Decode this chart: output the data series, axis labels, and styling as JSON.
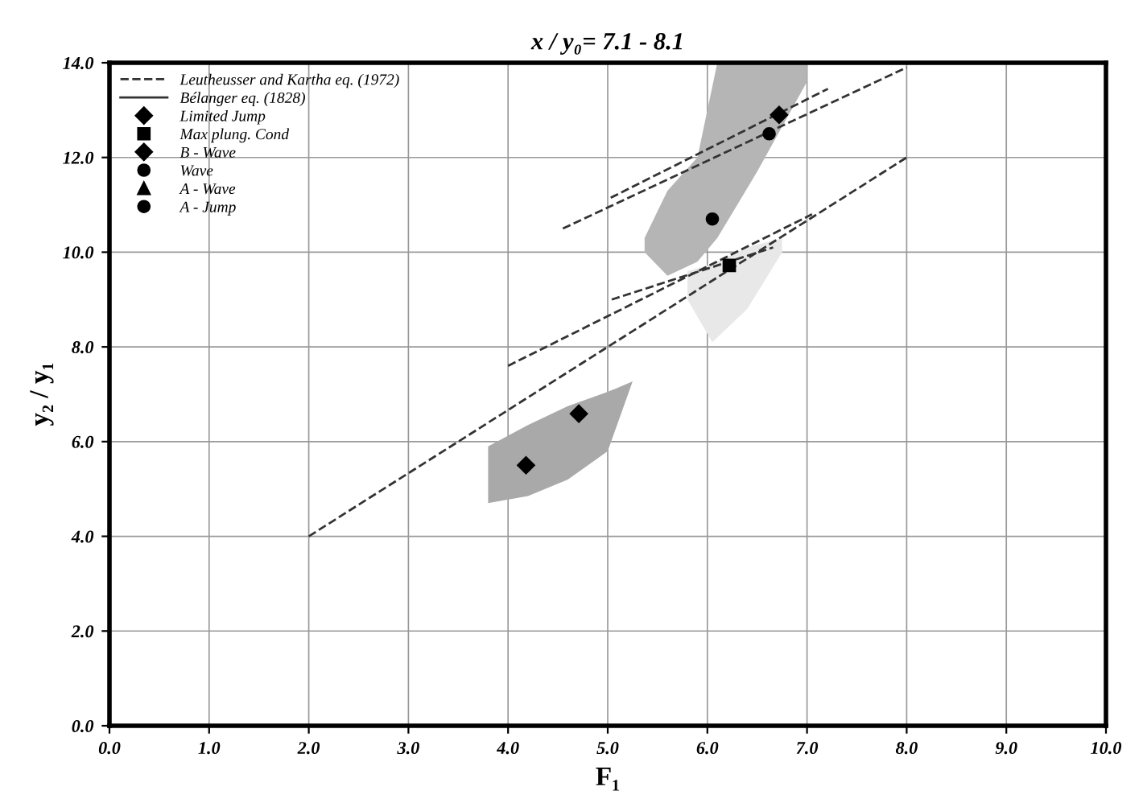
{
  "chart_data": {
    "type": "scatter",
    "title": "x / y₀= 7.1 - 8.1",
    "xlabel": "F₁",
    "ylabel": "y₂ / y₁",
    "xlim": [
      0.0,
      10.0
    ],
    "ylim": [
      0.0,
      14.0
    ],
    "xticks": [
      {
        "value": 0,
        "label": "0.0"
      },
      {
        "value": 1,
        "label": "1.0"
      },
      {
        "value": 2,
        "label": "2.0"
      },
      {
        "value": 3,
        "label": "3.0"
      },
      {
        "value": 4,
        "label": "4.0"
      },
      {
        "value": 5,
        "label": "5.0"
      },
      {
        "value": 6,
        "label": "6.0"
      },
      {
        "value": 7,
        "label": "7.0"
      },
      {
        "value": 8,
        "label": "8.0"
      },
      {
        "value": 9,
        "label": "9.0"
      },
      {
        "value": 10,
        "label": "10.0"
      }
    ],
    "yticks": [
      {
        "value": 0,
        "label": "0.0"
      },
      {
        "value": 2,
        "label": "2.0"
      },
      {
        "value": 4,
        "label": "4.0"
      },
      {
        "value": 6,
        "label": "6.0"
      },
      {
        "value": 8,
        "label": "8.0"
      },
      {
        "value": 10,
        "label": "10.0"
      },
      {
        "value": 12,
        "label": "12.0"
      },
      {
        "value": 14,
        "label": "14.0"
      }
    ],
    "grid": true,
    "legend": "top left",
    "series": [
      {
        "type": "line",
        "color": "#a9a9a9",
        "x": [
          3.8,
          4.2,
          4.6,
          5.0,
          5.25
        ],
        "values": [
          null,
          null,
          null,
          null,
          null
        ],
        "upper": [
          5.9,
          6.35,
          6.75,
          7.05,
          7.27
        ],
        "lower": [
          4.7,
          4.85,
          5.2,
          5.8,
          7.27
        ]
      },
      {
        "type": "line",
        "color": "#e8e8e8",
        "x": [
          5.8,
          6.05,
          6.4,
          6.75
        ],
        "values": [
          null,
          null,
          null,
          null
        ],
        "upper": [
          9.6,
          9.75,
          10.1,
          10.3
        ],
        "lower": [
          9.0,
          8.1,
          8.8,
          10.0
        ]
      },
      {
        "type": "line",
        "color": "#b5b5b5",
        "x": [
          5.37,
          5.6,
          5.9,
          6.1,
          6.5,
          7.0
        ],
        "values": [
          null,
          null,
          null,
          null,
          null,
          null
        ],
        "upper": [
          10.3,
          11.3,
          12.0,
          14.0,
          14.0,
          14.0
        ],
        "lower": [
          10.0,
          9.5,
          9.8,
          10.3,
          11.7,
          13.6
        ]
      },
      {
        "type": "line",
        "color": "#333333",
        "line_style": "dashed",
        "x": [
          2.0,
          8.0
        ],
        "values": [
          4.0,
          12.0
        ]
      },
      {
        "type": "line",
        "color": "#333333",
        "line_style": "dashed",
        "x": [
          4.0,
          7.05
        ],
        "values": [
          7.6,
          10.8
        ]
      },
      {
        "type": "line",
        "color": "#333333",
        "line_style": "dashed",
        "x": [
          5.04,
          6.66
        ],
        "values": [
          9.0,
          10.1
        ]
      },
      {
        "type": "line",
        "color": "#333333",
        "line_style": "dashed",
        "x": [
          5.03,
          7.21
        ],
        "values": [
          11.15,
          13.45
        ]
      },
      {
        "type": "line",
        "name": "Leutheusser and Kartha eq. (1972)",
        "color": "#333333",
        "line_style": "dashed",
        "x": [
          4.55,
          8.0
        ],
        "values": [
          10.5,
          13.9
        ]
      },
      {
        "type": "line",
        "name": "Bélanger eq. (1828)",
        "color": "#333333",
        "line_style": "solid"
      },
      {
        "name": "Limited Jump",
        "color": "#000000",
        "marker": "diamond",
        "x": [
          4.18,
          4.71
        ],
        "values": [
          5.5,
          6.59
        ]
      },
      {
        "name": "Max plung. Cond",
        "color": "#000000",
        "marker": "square",
        "x": [
          6.22
        ],
        "values": [
          9.72
        ]
      },
      {
        "name": "B - Wave",
        "color": "#000000",
        "marker": "diamond",
        "x": [
          6.72
        ],
        "values": [
          12.9
        ]
      },
      {
        "name": "Wave",
        "color": "#000000",
        "marker": "circle",
        "x": [
          6.05,
          6.62
        ],
        "values": [
          10.7,
          12.5
        ]
      },
      {
        "name": "A - Wave",
        "color": "#000000",
        "marker": "triangle"
      },
      {
        "name": "A - Jump",
        "color": "#000000",
        "marker": "circle"
      }
    ]
  }
}
